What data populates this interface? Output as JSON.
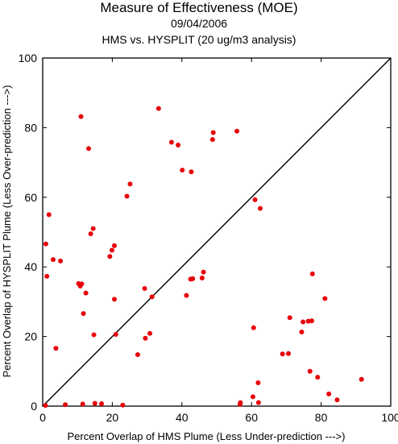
{
  "header": {
    "title": "Measure of Effectiveness (MOE)",
    "date": "09/04/2006",
    "subtitle": "HMS vs. HYSPLIT  (20 ug/m3 analysis)"
  },
  "colors": {
    "point": "#e8000b",
    "axis": "#000000"
  },
  "chart_data": {
    "type": "scatter",
    "title": "Measure of Effectiveness (MOE)",
    "xlabel": "Percent Overlap of HMS Plume (Less Under-prediction --->)",
    "ylabel": "Percent Overlap of HYSPLIT Plume (Less Over-prediction --->)",
    "xlim": [
      0,
      100
    ],
    "ylim": [
      0,
      100
    ],
    "xticks": [
      0,
      20,
      40,
      60,
      80,
      100
    ],
    "yticks": [
      0,
      20,
      40,
      60,
      80,
      100
    ],
    "grid": false,
    "reference_line": "diagonal y = x",
    "x": [
      0.8,
      1.2,
      1.8,
      0.9,
      3.0,
      3.8,
      5.1,
      6.5,
      10.3,
      11.0,
      10.8,
      11.2,
      11.5,
      11.7,
      12.4,
      13.2,
      13.8,
      14.5,
      14.7,
      15.0,
      16.9,
      19.3,
      19.9,
      20.6,
      20.6,
      21.0,
      23.0,
      24.2,
      25.1,
      27.3,
      29.3,
      29.5,
      30.8,
      31.4,
      33.3,
      37.0,
      38.9,
      40.1,
      41.3,
      42.7,
      42.5,
      43.1,
      45.8,
      46.2,
      48.8,
      49.0,
      55.8,
      56.7,
      56.8,
      60.4,
      60.6,
      61.0,
      61.9,
      62.5,
      62.0,
      68.9,
      70.6,
      71.0,
      74.4,
      74.8,
      76.3,
      76.8,
      77.5,
      77.3,
      79.0,
      81.1,
      82.2,
      84.6,
      91.6
    ],
    "y": [
      0.2,
      37.3,
      55.0,
      46.6,
      42.1,
      16.6,
      41.7,
      0.4,
      35.2,
      83.2,
      34.5,
      35.1,
      0.6,
      26.6,
      32.5,
      74.0,
      49.5,
      51.0,
      20.5,
      0.8,
      0.7,
      43.0,
      44.8,
      30.7,
      46.1,
      20.6,
      0.3,
      60.3,
      63.8,
      14.8,
      33.8,
      19.5,
      20.9,
      31.4,
      85.5,
      75.8,
      75.0,
      67.8,
      31.8,
      67.3,
      36.5,
      36.6,
      36.8,
      38.5,
      76.6,
      78.6,
      79.0,
      0.5,
      1.0,
      2.7,
      22.5,
      59.3,
      6.7,
      56.8,
      1.0,
      15.0,
      15.1,
      25.4,
      21.3,
      24.2,
      24.4,
      10.0,
      38.0,
      24.5,
      8.3,
      30.9,
      3.5,
      1.8,
      7.7
    ]
  }
}
